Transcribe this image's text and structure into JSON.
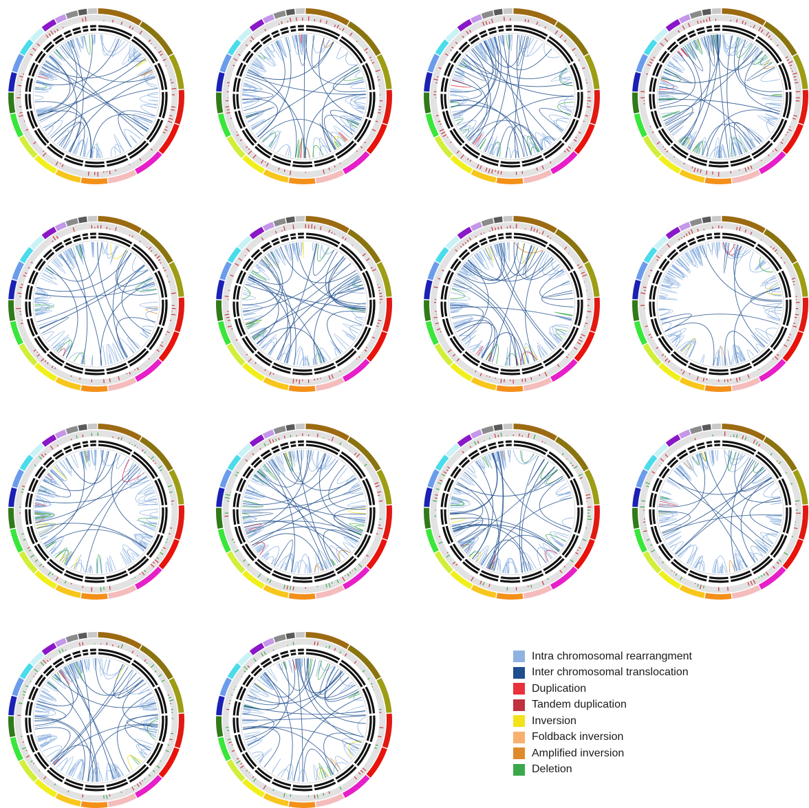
{
  "figure": {
    "panel_count": 14,
    "chromosome_colors": [
      "#9b6a12",
      "#8a7410",
      "#9d9d16",
      "#e01a12",
      "#e8130c",
      "#e61fc8",
      "#f5bcbc",
      "#f3901a",
      "#f7c51c",
      "#f0ef1c",
      "#d2ee3a",
      "#3ae63a",
      "#327a19",
      "#1a21b4",
      "#6b9cec",
      "#4adcea",
      "#c9f2f6",
      "#8a17c8",
      "#c497e8",
      "#8b8b8b",
      "#5a5a5a",
      "#c8c8c8"
    ]
  },
  "legend": {
    "items": [
      {
        "label": "Intra chromosomal rearrangment",
        "color": "#8fb3e0"
      },
      {
        "label": "Inter chromosomal translocation",
        "color": "#1f4e8c"
      },
      {
        "label": "Duplication",
        "color": "#e8313a"
      },
      {
        "label": "Tandem duplication",
        "color": "#c0303e"
      },
      {
        "label": "Inversion",
        "color": "#f2e21a"
      },
      {
        "label": "Foldback inversion",
        "color": "#f7b06e"
      },
      {
        "label": "Amplified inversion",
        "color": "#e08a2e"
      },
      {
        "label": "Deletion",
        "color": "#3aa84a"
      }
    ]
  }
}
